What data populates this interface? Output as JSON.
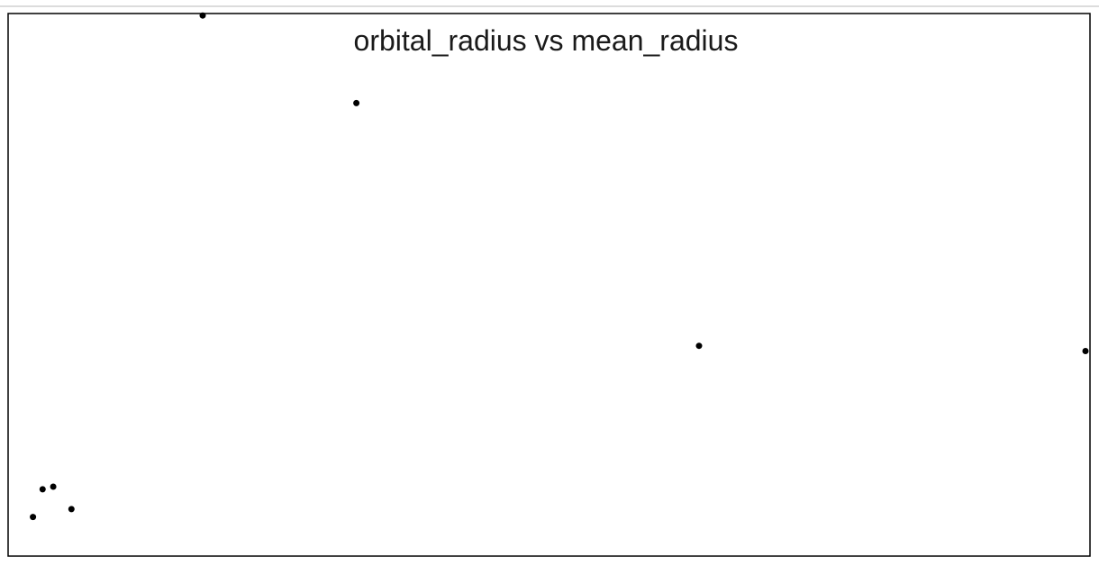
{
  "chart_data": {
    "type": "scatter",
    "title": "orbital_radius vs mean_radius",
    "xlabel": "",
    "ylabel": "",
    "xlim": [
      0,
      1000
    ],
    "ylim": [
      0,
      1000
    ],
    "grid": false,
    "series": [
      {
        "points": [
          {
            "x": 173,
            "y": 998
          },
          {
            "x": 317,
            "y": 830
          },
          {
            "x": 638,
            "y": 365
          },
          {
            "x": 1000,
            "y": 355
          },
          {
            "x": 23,
            "y": 90
          },
          {
            "x": 33,
            "y": 95
          },
          {
            "x": 14,
            "y": 37
          },
          {
            "x": 50,
            "y": 52
          }
        ]
      }
    ]
  }
}
